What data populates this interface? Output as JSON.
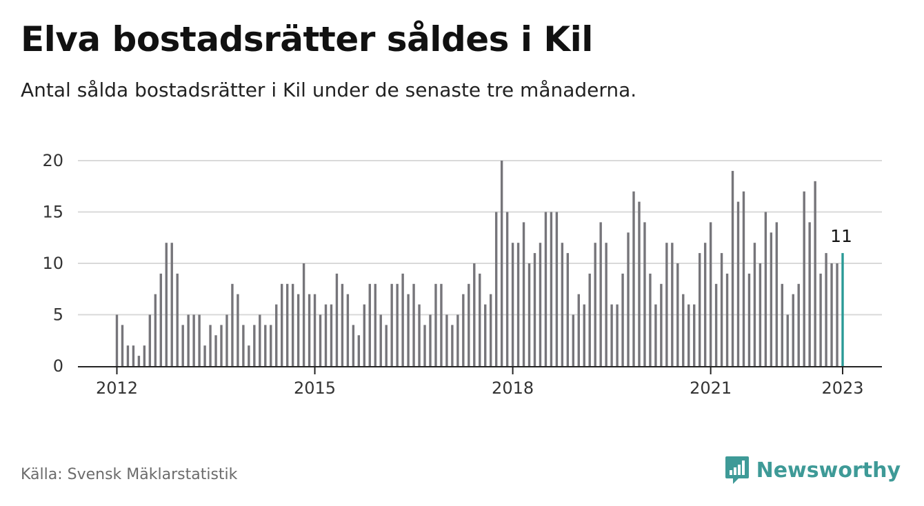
{
  "header": {
    "title": "Elva bostadsrätter såldes i Kil",
    "subtitle": "Antal sålda bostadsrätter i Kil under de senaste tre månaderna."
  },
  "footer": {
    "source": "Källa: Svensk Mäklarstatistik",
    "brand": "Newsworthy",
    "brand_icon": "newsworthy-logo-icon"
  },
  "colors": {
    "bar": "#76757a",
    "highlight": "#2a9a96",
    "grid": "#d9d9d9",
    "axis": "#222222",
    "brand": "#3e9a97"
  },
  "chart_data": {
    "type": "bar",
    "title": "Elva bostadsrätter såldes i Kil",
    "subtitle": "Antal sålda bostadsrätter i Kil under de senaste tre månaderna.",
    "xlabel": "",
    "ylabel": "",
    "ylim": [
      0,
      20
    ],
    "yticks": [
      0,
      5,
      10,
      15,
      20
    ],
    "grid": true,
    "x_start": "2012-01",
    "x_end": "2023-01",
    "xtick_labels": [
      {
        "label": "2012",
        "month": "2012-01"
      },
      {
        "label": "2015",
        "month": "2015-01"
      },
      {
        "label": "2018",
        "month": "2018-01"
      },
      {
        "label": "2021",
        "month": "2021-01"
      },
      {
        "label": "2023",
        "month": "2023-01"
      }
    ],
    "highlight_label": "11",
    "series": [
      {
        "values": [
          5,
          4,
          2,
          2,
          1,
          2,
          5,
          7,
          9,
          12,
          12,
          9,
          4,
          5,
          5,
          5,
          2,
          4,
          3,
          4,
          5,
          8,
          7,
          4,
          2,
          4,
          5,
          4,
          4,
          6,
          8,
          8,
          8,
          7,
          10,
          7,
          7,
          5,
          6,
          6,
          9,
          8,
          7,
          4,
          3,
          6,
          8,
          8,
          5,
          4,
          8,
          8,
          9,
          7,
          8,
          6,
          4,
          5,
          8,
          8,
          5,
          4,
          5,
          7,
          8,
          10,
          9,
          6,
          7,
          15,
          20,
          15,
          12,
          12,
          14,
          10,
          11,
          12,
          15,
          15,
          15,
          12,
          11,
          5,
          7,
          6,
          9,
          12,
          14,
          12,
          6,
          6,
          9,
          13,
          17,
          16,
          14,
          9,
          6,
          8,
          12,
          12,
          10,
          7,
          6,
          6,
          11,
          12,
          14,
          8,
          11,
          9,
          19,
          16,
          17,
          9,
          12,
          10,
          15,
          13,
          14,
          8,
          5,
          7,
          8,
          17,
          14,
          18,
          9,
          11,
          10,
          10,
          11
        ]
      }
    ]
  }
}
